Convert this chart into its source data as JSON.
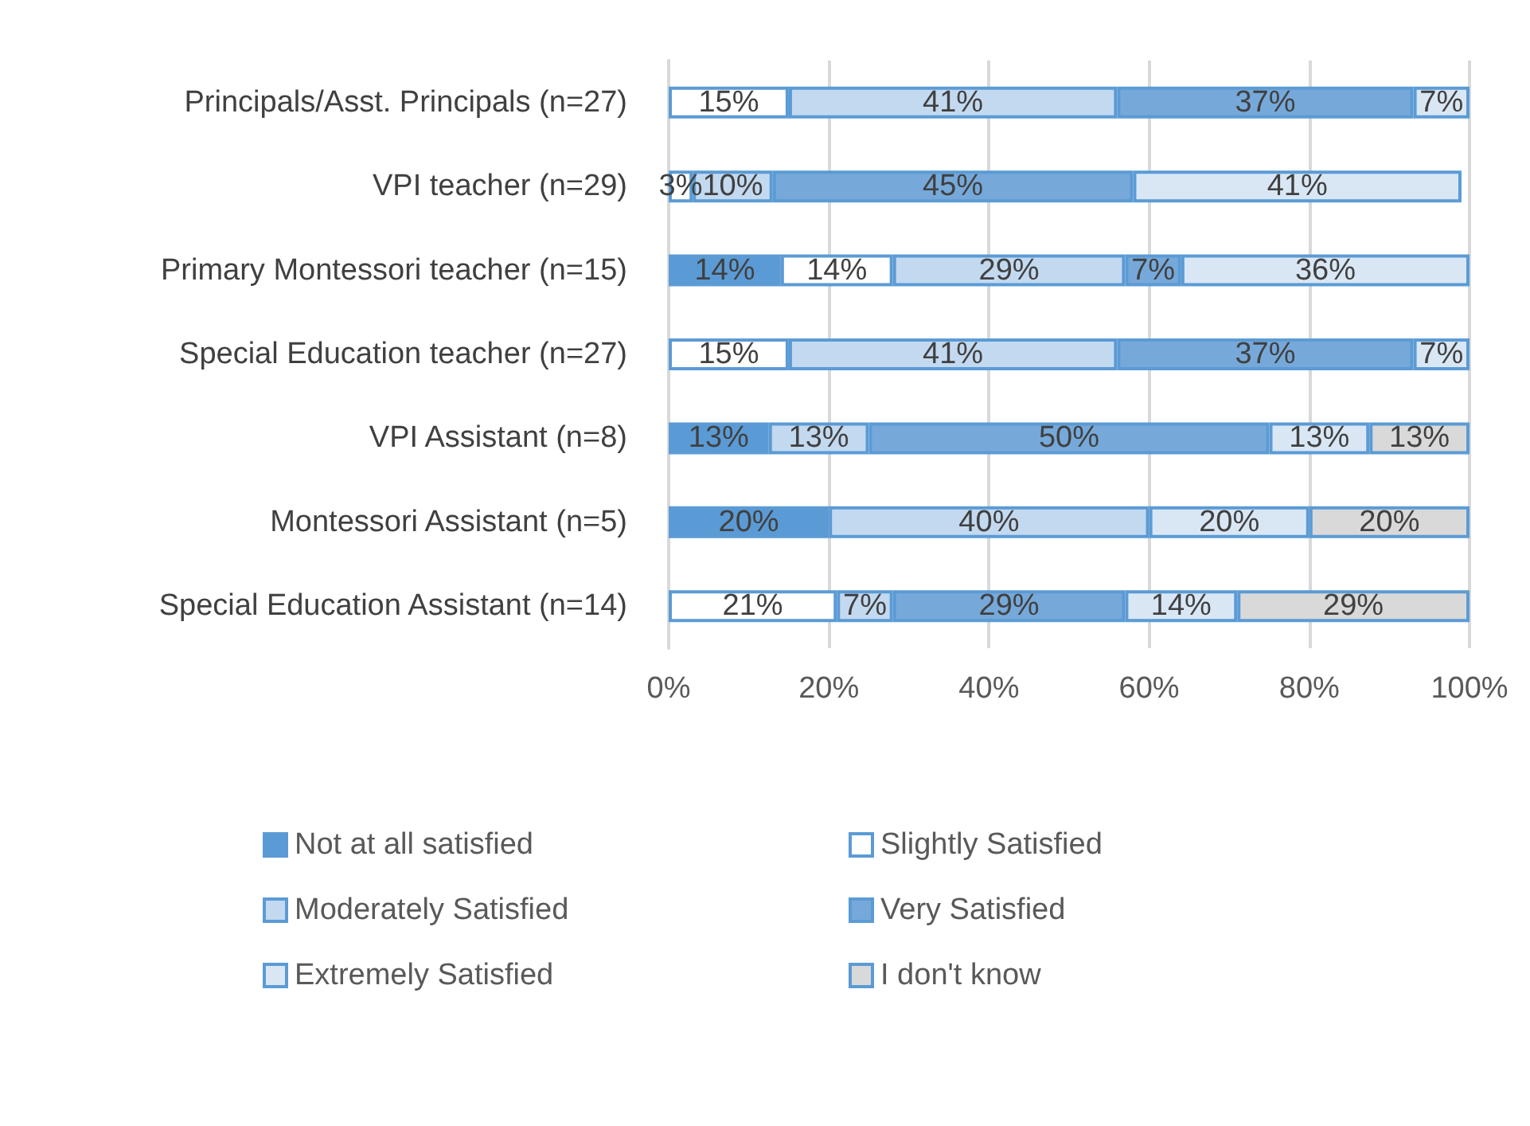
{
  "chart_data": {
    "type": "bar",
    "orientation": "horizontal",
    "stacked": true,
    "categories": [
      "Principals/Asst. Principals (n=27)",
      "VPI teacher (n=29)",
      "Primary Montessori teacher (n=15)",
      "Special Education teacher (n=27)",
      "VPI Assistant (n=8)",
      "Montessori Assistant (n=5)",
      "Special Education Assistant (n=14)"
    ],
    "series": [
      {
        "name": "Not at all satisfied",
        "color": "#5b9bd5",
        "values": [
          null,
          null,
          14,
          null,
          12.5,
          20,
          null
        ],
        "value_labels": [
          null,
          null,
          "14%",
          null,
          "13%",
          "20%",
          null
        ]
      },
      {
        "name": "Slightly Satisfied",
        "color": "#ffffff",
        "values": [
          15,
          3,
          14,
          15,
          null,
          null,
          21
        ],
        "value_labels": [
          "15%",
          "3%",
          "14%",
          "15%",
          null,
          null,
          "21%"
        ]
      },
      {
        "name": "Moderately Satisfied",
        "color": "#c3d9f0",
        "values": [
          41,
          10,
          29,
          41,
          12.5,
          40,
          7
        ],
        "value_labels": [
          "41%",
          "10%",
          "29%",
          "41%",
          "13%",
          "40%",
          "7%"
        ]
      },
      {
        "name": "Very Satisfied",
        "color": "#76a9da",
        "values": [
          37,
          45,
          7,
          37,
          50,
          null,
          29
        ],
        "value_labels": [
          "37%",
          "45%",
          "7%",
          "37%",
          "50%",
          null,
          "29%"
        ]
      },
      {
        "name": "Extremely Satisfied",
        "color": "#d9e7f5",
        "values": [
          7,
          41,
          36,
          7,
          12.5,
          20,
          14
        ],
        "value_labels": [
          "7%",
          "41%",
          "36%",
          "7%",
          "13%",
          "20%",
          "14%"
        ]
      },
      {
        "name": "I don't know",
        "color": "#d9d9d9",
        "values": [
          null,
          null,
          null,
          null,
          12.5,
          20,
          29
        ],
        "value_labels": [
          null,
          null,
          null,
          null,
          "13%",
          "20%",
          "29%"
        ]
      }
    ],
    "xlim": [
      0,
      100
    ],
    "xticks": [
      {
        "value": 0,
        "label": "0%"
      },
      {
        "value": 20,
        "label": "20%"
      },
      {
        "value": 40,
        "label": "40%"
      },
      {
        "value": 60,
        "label": "60%"
      },
      {
        "value": 80,
        "label": "80%"
      },
      {
        "value": 100,
        "label": "100%"
      }
    ],
    "grid": "x",
    "legend": "bottom"
  }
}
